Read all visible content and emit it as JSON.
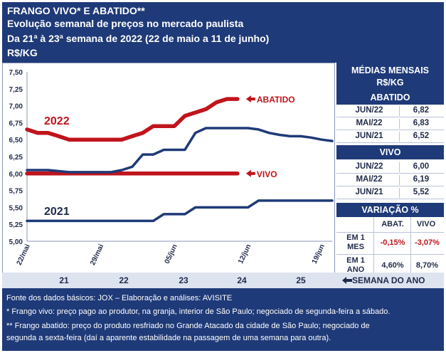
{
  "header": {
    "line1": "FRANGO VIVO* E ABATIDO**",
    "line2": "Evolução semanal de preços no mercado paulista",
    "line3": "Da 21ª à 23ª semana de 2022 (22 de maio a 11 de junho)",
    "line4": "R$/KG"
  },
  "chart_data": {
    "type": "line",
    "yticks": [
      "7,50",
      "7,25",
      "7,00",
      "6,75",
      "6,50",
      "6,25",
      "6,00",
      "5,75",
      "5,50",
      "5,25",
      "5,00"
    ],
    "ylim": [
      5.0,
      7.5
    ],
    "xlim": [
      0,
      29
    ],
    "xticks": [
      {
        "label": "22/mai",
        "day": 0
      },
      {
        "label": "29/mai",
        "day": 7
      },
      {
        "label": "05/jun",
        "day": 14
      },
      {
        "label": "12/jun",
        "day": 21
      },
      {
        "label": "19/jun",
        "day": 28
      }
    ],
    "year_labels": [
      "2022",
      "2021"
    ],
    "end_labels": [
      "ABATIDO",
      "VIVO"
    ],
    "series": [
      {
        "name": "ABATIDO",
        "year": "2022",
        "color": "#c0141c",
        "x": [
          0,
          1,
          2,
          3,
          4,
          5,
          6,
          7,
          8,
          9,
          10,
          11,
          12,
          13,
          14,
          15,
          16,
          17,
          18,
          19,
          20
        ],
        "y": [
          6.65,
          6.6,
          6.6,
          6.55,
          6.5,
          6.5,
          6.5,
          6.5,
          6.5,
          6.5,
          6.55,
          6.6,
          6.7,
          6.7,
          6.7,
          6.85,
          6.9,
          6.95,
          7.05,
          7.1,
          7.1
        ]
      },
      {
        "name": "VIVO",
        "year": "2022",
        "color": "#c0141c",
        "x": [
          0,
          20
        ],
        "y": [
          6.0,
          6.0
        ]
      },
      {
        "name": "ABATIDO",
        "year": "2021",
        "color": "#1f3a78",
        "x": [
          0,
          2,
          4,
          6,
          8,
          9,
          10,
          11,
          12,
          13,
          14,
          15,
          16,
          17,
          18,
          20,
          21,
          22,
          23,
          24,
          25,
          26,
          27,
          28,
          29
        ],
        "y": [
          6.05,
          6.05,
          6.02,
          6.02,
          6.02,
          6.05,
          6.1,
          6.28,
          6.28,
          6.35,
          6.35,
          6.35,
          6.6,
          6.67,
          6.67,
          6.67,
          6.67,
          6.65,
          6.6,
          6.57,
          6.55,
          6.55,
          6.53,
          6.5,
          6.48
        ]
      },
      {
        "name": "VIVO",
        "year": "2021",
        "color": "#1f3a78",
        "x": [
          0,
          10,
          12,
          13,
          15,
          16,
          18,
          19,
          20,
          21,
          22,
          23,
          26,
          29
        ],
        "y": [
          5.3,
          5.3,
          5.3,
          5.4,
          5.4,
          5.5,
          5.5,
          5.5,
          5.5,
          5.5,
          5.6,
          5.6,
          5.6,
          5.6
        ]
      }
    ]
  },
  "side": {
    "title1": "MÉDIAS MENSAIS",
    "title2": "R$/KG",
    "abatido_head": "ABATIDO",
    "abatido_rows": [
      {
        "label": "JUN/22",
        "value": "6,82"
      },
      {
        "label": "MAI/22",
        "value": "6,83"
      },
      {
        "label": "JUN/21",
        "value": "6,52"
      }
    ],
    "vivo_head": "VIVO",
    "vivo_rows": [
      {
        "label": "JUN/22",
        "value": "6,00"
      },
      {
        "label": "MAI/22",
        "value": "6,19"
      },
      {
        "label": "JUN/21",
        "value": "5,52"
      }
    ],
    "variacao_head": "VARIAÇÃO %",
    "col_abat": "ABAT.",
    "col_vivo": "VIVO",
    "var_rows": [
      {
        "label1": "EM 1",
        "label2": "MES",
        "abat": "-0,15%",
        "vivo": "-3,07%"
      },
      {
        "label1": "EM 1",
        "label2": "ANO",
        "abat": "4,60%",
        "vivo": "8,70%"
      }
    ]
  },
  "weekbar": {
    "weeks": [
      "21",
      "22",
      "23",
      "24",
      "25"
    ],
    "label": "SEMANA DO ANO",
    "label_arrow": "arrow-left-icon"
  },
  "footer": {
    "line1": "Fonte dos dados básicos: JOX – Elaboração e análises: AVISITE",
    "line2": "*   Frango vivo: preço pago ao produtor, na granja, interior de São Paulo; negociado de segunda-feira a sábado.",
    "line3": "** Frango abatido: preço do produto resfriado no Grande Atacado da cidade de São Paulo; negociado de",
    "line4": "segunda a sexta-feira (daí a aparente estabilidade na passagem de uma semana para outra)."
  },
  "colors": {
    "navy": "#1f3a78",
    "red": "#c0141c",
    "weekbar": "#dde3ef"
  }
}
